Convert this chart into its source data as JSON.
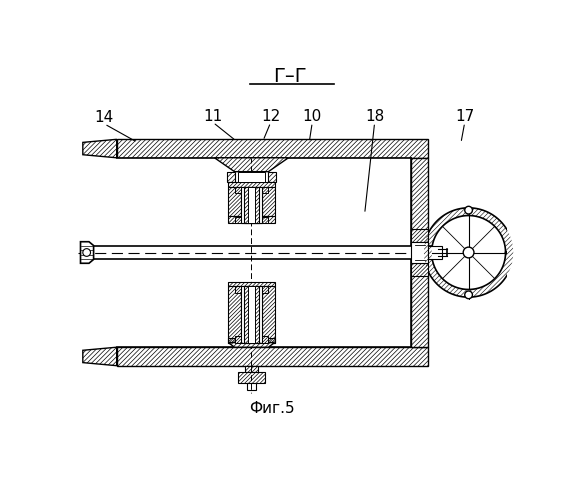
{
  "title": "Г–Г",
  "caption": "Фиг.5",
  "bg": "#ffffff",
  "lc": "#000000",
  "labels": [
    "14",
    "11",
    "12",
    "10",
    "18",
    "17"
  ],
  "label_tx": [
    42,
    183,
    258,
    312,
    393,
    510
  ],
  "label_ty": [
    425,
    427,
    427,
    427,
    427,
    427
  ],
  "arrow_ex": [
    85,
    213,
    248,
    308,
    380,
    505
  ],
  "arrow_ey": [
    393,
    395,
    395,
    393,
    300,
    392
  ]
}
